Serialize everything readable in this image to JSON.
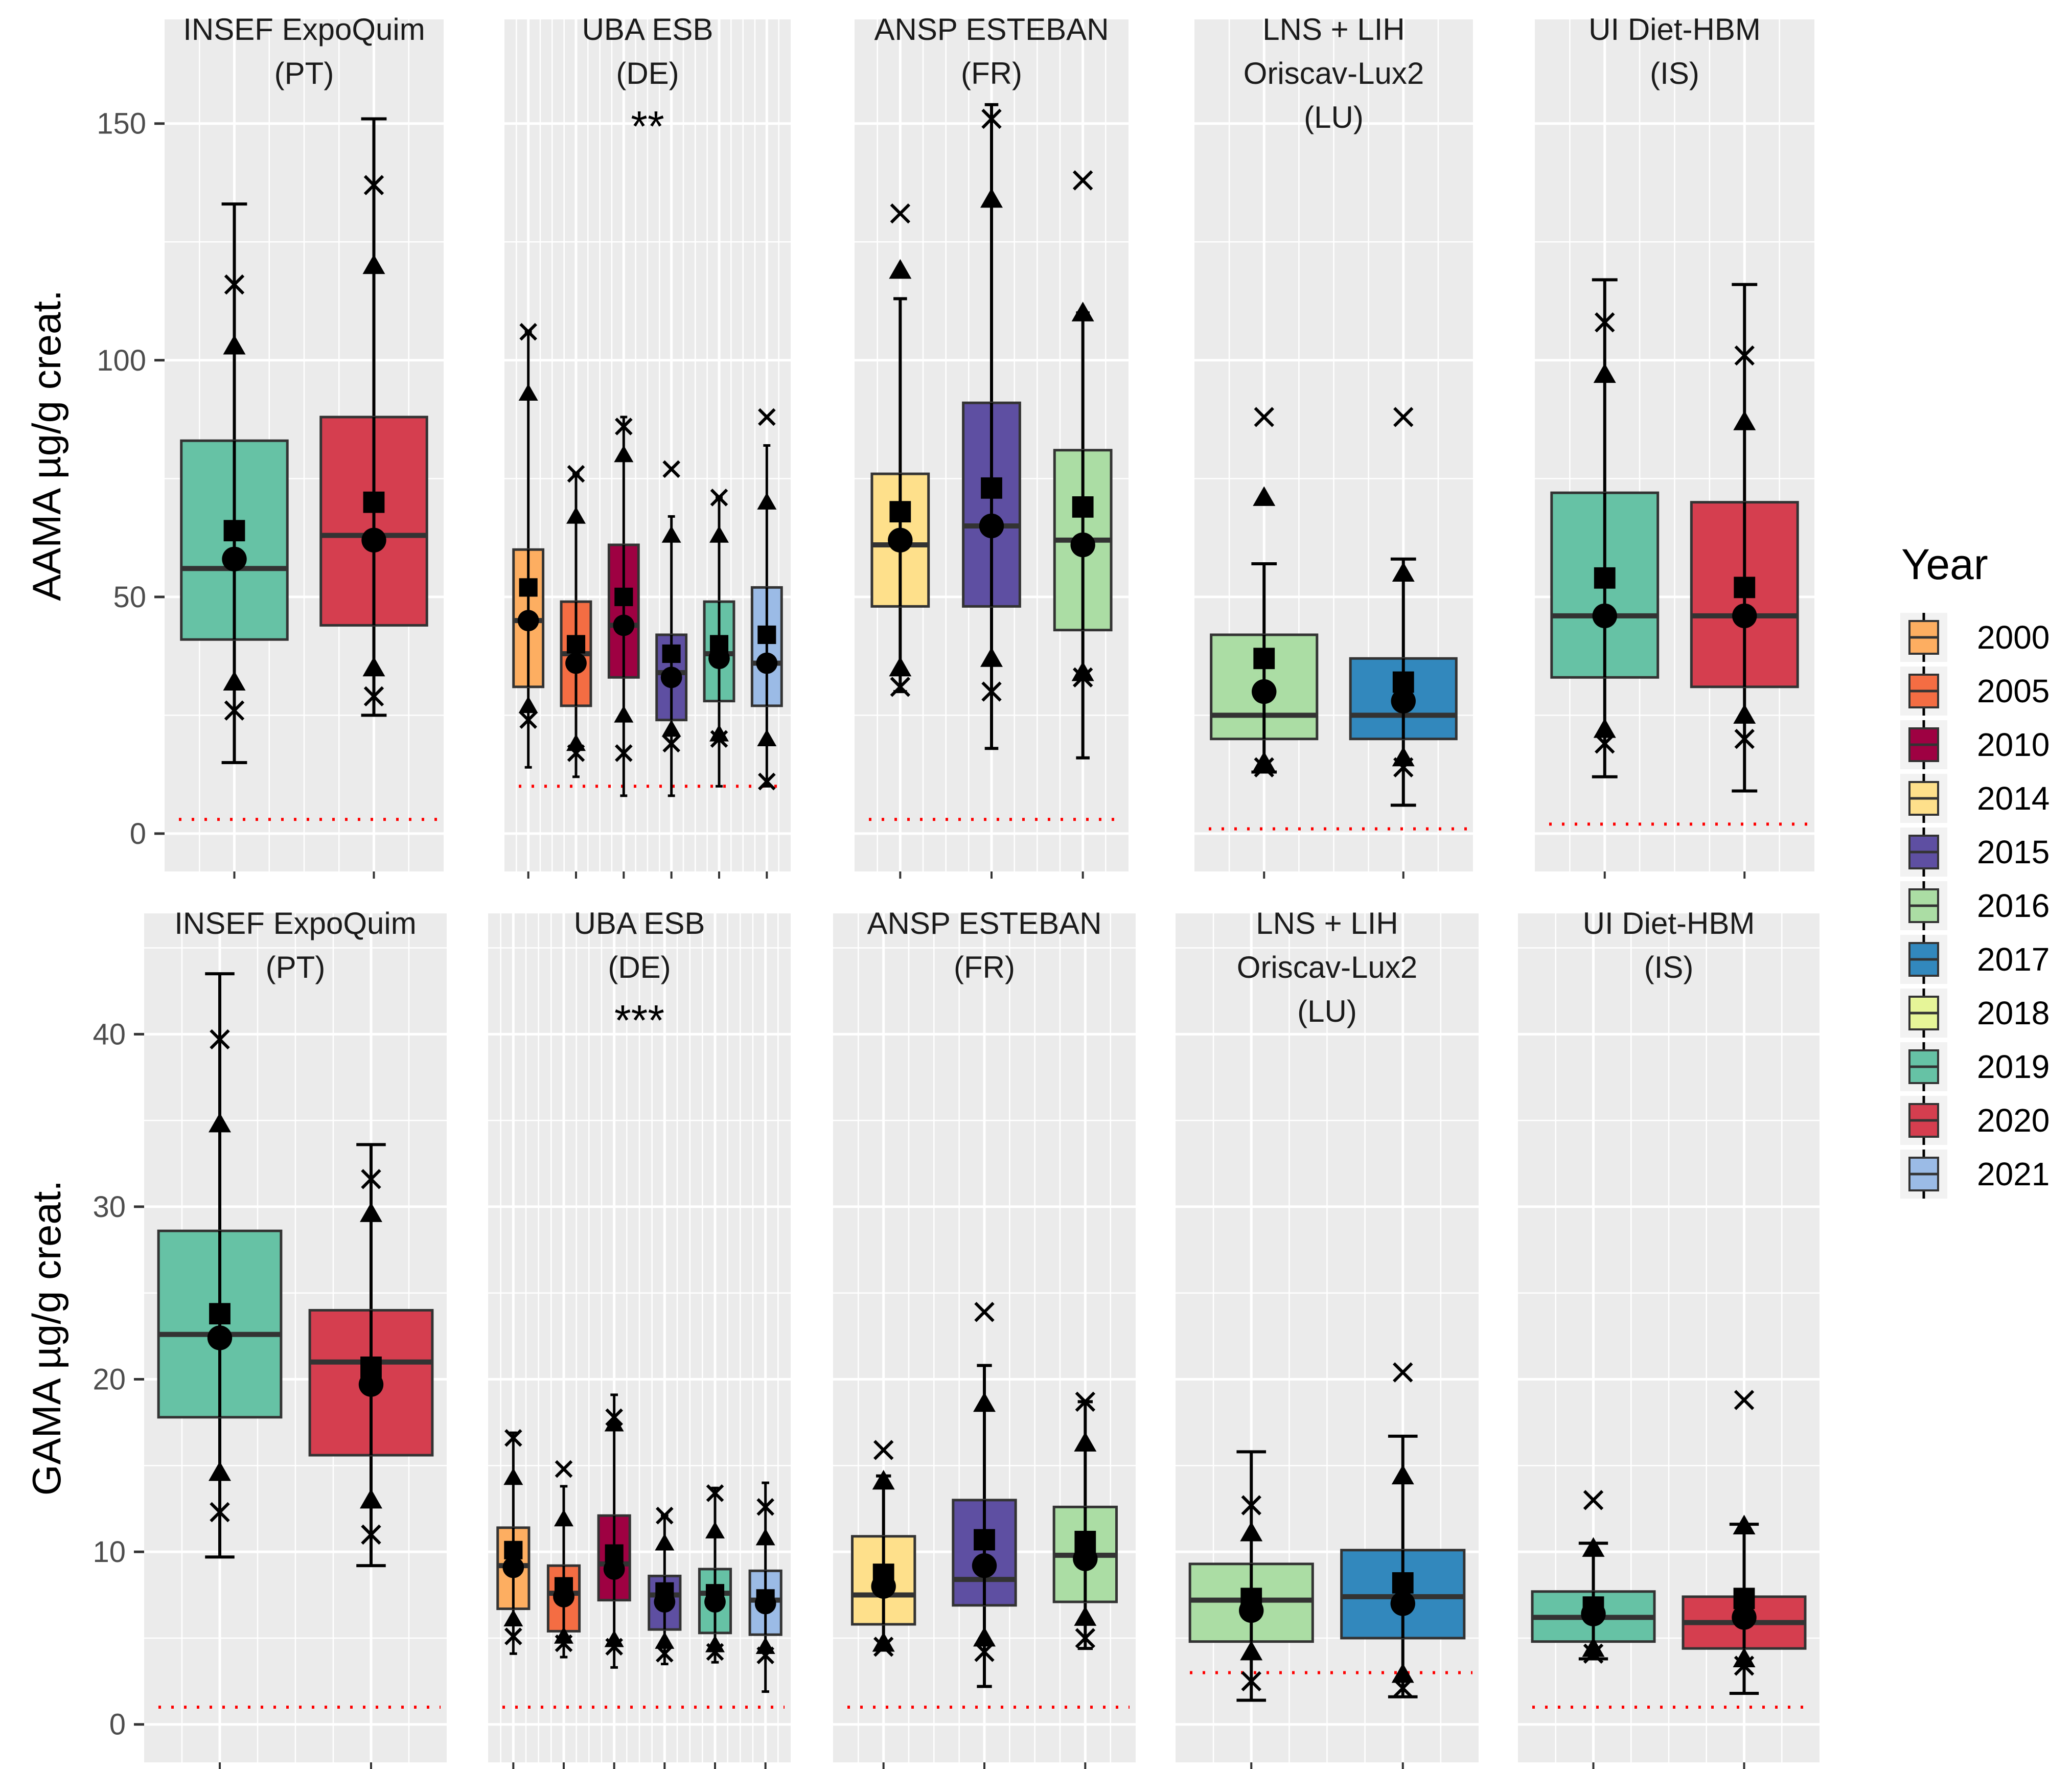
{
  "chart_data": [
    {
      "type": "box",
      "ylabel": "AAMA µg/g creat.",
      "ylim": [
        -8,
        172
      ],
      "yticks": [
        0,
        50,
        100,
        150
      ],
      "legend_title": "Year",
      "panels": [
        {
          "title": [
            "INSEF ExpoQuim",
            "(PT)"
          ],
          "significance": "",
          "lod": 3,
          "boxes": [
            {
              "year": "2019",
              "low": 15,
              "p5": 26,
              "p10": 32,
              "q1": 41,
              "median": 56,
              "q3": 83,
              "p90": 103,
              "p95": 116,
              "high": 133,
              "mean": 64,
              "gmean": 58
            },
            {
              "year": "2020",
              "low": 25,
              "p5": 29,
              "p10": 35,
              "q1": 44,
              "median": 63,
              "q3": 88,
              "p90": 120,
              "p95": 137,
              "high": 151,
              "mean": 70,
              "gmean": 62
            }
          ]
        },
        {
          "title": [
            "UBA ESB",
            "(DE)"
          ],
          "significance": "**",
          "lod": 10,
          "boxes": [
            {
              "year": "2000",
              "low": 14,
              "p5": 24,
              "p10": 27,
              "q1": 31,
              "median": 45,
              "q3": 60,
              "p90": 93,
              "p95": 106,
              "high": 106,
              "mean": 52,
              "gmean": 45
            },
            {
              "year": "2005",
              "low": 12,
              "p5": 17,
              "p10": 19,
              "q1": 27,
              "median": 38,
              "q3": 49,
              "p90": 67,
              "p95": 76,
              "high": 76,
              "mean": 40,
              "gmean": 36
            },
            {
              "year": "2010",
              "low": 8,
              "p5": 17,
              "p10": 25,
              "q1": 33,
              "median": 44,
              "q3": 61,
              "p90": 80,
              "p95": 86,
              "high": 88,
              "mean": 50,
              "gmean": 44
            },
            {
              "year": "2015",
              "low": 8,
              "p5": 19,
              "p10": 22,
              "q1": 24,
              "median": 34,
              "q3": 42,
              "p90": 63,
              "p95": 77,
              "high": 67,
              "mean": 38,
              "gmean": 33
            },
            {
              "year": "2019",
              "low": 10,
              "p5": 20,
              "p10": 21,
              "q1": 28,
              "median": 38,
              "q3": 49,
              "p90": 63,
              "p95": 71,
              "high": 71,
              "mean": 40,
              "gmean": 37
            },
            {
              "year": "2021",
              "low": 10,
              "p5": 11,
              "p10": 20,
              "q1": 27,
              "median": 36,
              "q3": 52,
              "p90": 70,
              "p95": 88,
              "high": 82,
              "mean": 42,
              "gmean": 36
            }
          ]
        },
        {
          "title": [
            "ANSP ESTEBAN",
            "(FR)"
          ],
          "significance": "",
          "lod": 3,
          "boxes": [
            {
              "year": "2014",
              "low": 30,
              "p5": 31,
              "p10": 35,
              "q1": 48,
              "median": 61,
              "q3": 76,
              "p90": 119,
              "p95": 131,
              "high": 113,
              "mean": 68,
              "gmean": 62
            },
            {
              "year": "2015",
              "low": 18,
              "p5": 30,
              "p10": 37,
              "q1": 48,
              "median": 65,
              "q3": 91,
              "p90": 134,
              "p95": 151,
              "high": 154,
              "mean": 73,
              "gmean": 65
            },
            {
              "year": "2016",
              "low": 16,
              "p5": 33,
              "p10": 34,
              "q1": 43,
              "median": 62,
              "q3": 81,
              "p90": 110,
              "p95": 138,
              "high": 110,
              "mean": 69,
              "gmean": 61
            }
          ]
        },
        {
          "title": [
            "LNS + LIH",
            "Oriscav-Lux2",
            "(LU)"
          ],
          "significance": "",
          "lod": 1,
          "boxes": [
            {
              "year": "2016",
              "low": 13,
              "p5": 14,
              "p10": 15,
              "q1": 20,
              "median": 25,
              "q3": 42,
              "p90": 71,
              "p95": 88,
              "high": 57,
              "mean": 37,
              "gmean": 30
            },
            {
              "year": "2017",
              "low": 6,
              "p5": 14,
              "p10": 16,
              "q1": 20,
              "median": 25,
              "q3": 37,
              "p90": 55,
              "p95": 88,
              "high": 58,
              "mean": 32,
              "gmean": 28
            }
          ]
        },
        {
          "title": [
            "UI Diet-HBM",
            "(IS)"
          ],
          "significance": "",
          "lod": 2,
          "boxes": [
            {
              "year": "2019",
              "low": 12,
              "p5": 19,
              "p10": 22,
              "q1": 33,
              "median": 46,
              "q3": 72,
              "p90": 97,
              "p95": 108,
              "high": 117,
              "mean": 54,
              "gmean": 46
            },
            {
              "year": "2020",
              "low": 9,
              "p5": 20,
              "p10": 25,
              "q1": 31,
              "median": 46,
              "q3": 70,
              "p90": 87,
              "p95": 101,
              "high": 116,
              "mean": 52,
              "gmean": 46
            }
          ]
        }
      ]
    },
    {
      "type": "box",
      "ylabel": "GAMA µg/g creat.",
      "ylim": [
        -2.2,
        47
      ],
      "yticks": [
        0,
        10,
        20,
        30,
        40
      ],
      "legend_title": "Year",
      "panels": [
        {
          "title": [
            "INSEF ExpoQuim",
            "(PT)"
          ],
          "significance": "",
          "lod": 1,
          "boxes": [
            {
              "year": "2019",
              "low": 9.7,
              "p5": 12.3,
              "p10": 14.6,
              "q1": 17.8,
              "median": 22.6,
              "q3": 28.6,
              "p90": 34.8,
              "p95": 39.7,
              "high": 43.5,
              "mean": 23.8,
              "gmean": 22.4
            },
            {
              "year": "2020",
              "low": 9.2,
              "p5": 11.0,
              "p10": 13.0,
              "q1": 15.6,
              "median": 21.0,
              "q3": 24.0,
              "p90": 29.6,
              "p95": 31.6,
              "high": 33.6,
              "mean": 20.7,
              "gmean": 19.7
            }
          ]
        },
        {
          "title": [
            "UBA ESB",
            "(DE)"
          ],
          "significance": "***",
          "lod": 1,
          "boxes": [
            {
              "year": "2000",
              "low": 4.1,
              "p5": 5.1,
              "p10": 6.1,
              "q1": 6.7,
              "median": 9.2,
              "q3": 11.4,
              "p90": 14.3,
              "p95": 16.6,
              "high": 16.9,
              "mean": 10.1,
              "gmean": 9.1
            },
            {
              "year": "2005",
              "low": 3.9,
              "p5": 4.7,
              "p10": 5.1,
              "q1": 5.4,
              "median": 7.6,
              "q3": 9.2,
              "p90": 11.9,
              "p95": 14.8,
              "high": 13.8,
              "mean": 8.0,
              "gmean": 7.4
            },
            {
              "year": "2010",
              "low": 3.3,
              "p5": 4.5,
              "p10": 4.9,
              "q1": 7.2,
              "median": 9.3,
              "q3": 12.1,
              "p90": 17.4,
              "p95": 17.8,
              "high": 19.1,
              "mean": 9.9,
              "gmean": 9.0
            },
            {
              "year": "2015",
              "low": 3.5,
              "p5": 4.1,
              "p10": 4.8,
              "q1": 5.5,
              "median": 7.5,
              "q3": 8.6,
              "p90": 10.5,
              "p95": 12.1,
              "high": 12.1,
              "mean": 7.7,
              "gmean": 7.1
            },
            {
              "year": "2019",
              "low": 3.6,
              "p5": 4.2,
              "p10": 4.6,
              "q1": 5.3,
              "median": 7.6,
              "q3": 9.0,
              "p90": 11.2,
              "p95": 13.4,
              "high": 13.7,
              "mean": 7.6,
              "gmean": 7.1
            },
            {
              "year": "2021",
              "low": 1.9,
              "p5": 4.0,
              "p10": 4.5,
              "q1": 5.2,
              "median": 7.2,
              "q3": 8.9,
              "p90": 10.8,
              "p95": 12.6,
              "high": 14.0,
              "mean": 7.3,
              "gmean": 7.0
            }
          ]
        },
        {
          "title": [
            "ANSP ESTEBAN",
            "(FR)"
          ],
          "significance": "",
          "lod": 1,
          "boxes": [
            {
              "year": "2014",
              "low": 4.3,
              "p5": 4.5,
              "p10": 4.7,
              "q1": 5.8,
              "median": 7.5,
              "q3": 10.9,
              "p90": 14.1,
              "p95": 15.9,
              "high": 14.4,
              "mean": 8.7,
              "gmean": 8.0
            },
            {
              "year": "2015",
              "low": 2.2,
              "p5": 4.2,
              "p10": 5.0,
              "q1": 6.9,
              "median": 8.4,
              "q3": 13.0,
              "p90": 18.6,
              "p95": 23.9,
              "high": 20.8,
              "mean": 10.7,
              "gmean": 9.2
            },
            {
              "year": "2016",
              "low": 4.4,
              "p5": 5.0,
              "p10": 6.2,
              "q1": 7.1,
              "median": 9.8,
              "q3": 12.6,
              "p90": 16.3,
              "p95": 18.7,
              "high": 18.7,
              "mean": 10.6,
              "gmean": 9.6
            }
          ]
        },
        {
          "title": [
            "LNS +  LIH",
            "Oriscav-Lux2",
            "(LU)"
          ],
          "significance": "",
          "lod": 3,
          "boxes": [
            {
              "year": "2016",
              "low": 1.4,
              "p5": 2.5,
              "p10": 4.2,
              "q1": 4.8,
              "median": 7.2,
              "q3": 9.3,
              "p90": 11.1,
              "p95": 12.7,
              "high": 15.8,
              "mean": 7.3,
              "gmean": 6.6
            },
            {
              "year": "2017",
              "low": 1.6,
              "p5": 2.1,
              "p10": 2.9,
              "q1": 5.0,
              "median": 7.4,
              "q3": 10.1,
              "p90": 14.4,
              "p95": 20.4,
              "high": 16.7,
              "mean": 8.2,
              "gmean": 7.0
            }
          ]
        },
        {
          "title": [
            "UI Diet-HBM",
            "(IS)"
          ],
          "significance": "",
          "lod": 1,
          "boxes": [
            {
              "year": "2019",
              "low": 3.8,
              "p5": 4.1,
              "p10": 4.4,
              "q1": 4.8,
              "median": 6.2,
              "q3": 7.7,
              "p90": 10.2,
              "p95": 13.0,
              "high": 10.5,
              "mean": 6.8,
              "gmean": 6.4
            },
            {
              "year": "2020",
              "low": 1.8,
              "p5": 3.4,
              "p10": 3.8,
              "q1": 4.4,
              "median": 5.9,
              "q3": 7.4,
              "p90": 11.5,
              "p95": 18.8,
              "high": 11.6,
              "mean": 7.3,
              "gmean": 6.2
            }
          ]
        }
      ]
    }
  ],
  "legend": {
    "title": "Year",
    "entries": [
      {
        "label": "2000",
        "color": "#FDAE61"
      },
      {
        "label": "2005",
        "color": "#F46D43"
      },
      {
        "label": "2010",
        "color": "#9E0142"
      },
      {
        "label": "2014",
        "color": "#FEE08B"
      },
      {
        "label": "2015",
        "color": "#5E4FA2"
      },
      {
        "label": "2016",
        "color": "#ABDDA4"
      },
      {
        "label": "2017",
        "color": "#3288BD"
      },
      {
        "label": "2018",
        "color": "#E6F598"
      },
      {
        "label": "2019",
        "color": "#66C2A5"
      },
      {
        "label": "2020",
        "color": "#D53E4F"
      },
      {
        "label": "2021",
        "color": "#9BBBE6"
      }
    ]
  }
}
